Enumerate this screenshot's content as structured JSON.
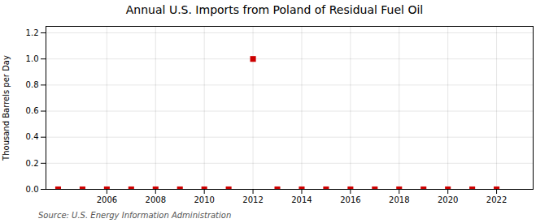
{
  "chart_data": {
    "type": "scatter",
    "title": "Annual U.S. Imports from Poland of Residual Fuel Oil",
    "ylabel": "Thousand Barrels per Day",
    "source": "Source: U.S. Energy Information Administration",
    "x": [
      2004,
      2005,
      2006,
      2007,
      2008,
      2009,
      2010,
      2011,
      2012,
      2013,
      2014,
      2015,
      2016,
      2017,
      2018,
      2019,
      2020,
      2021,
      2022
    ],
    "values": [
      0.0,
      0.0,
      0.0,
      0.0,
      0.0,
      0.0,
      0.0,
      0.0,
      1.0,
      0.0,
      0.0,
      0.0,
      0.0,
      0.0,
      0.0,
      0.0,
      0.0,
      0.0,
      0.0
    ],
    "color": "#cc0000",
    "marker": "square",
    "xlim": [
      2003.5,
      2023.5
    ],
    "xticks": [
      2006,
      2008,
      2010,
      2012,
      2014,
      2016,
      2018,
      2020,
      2022
    ],
    "ylim": [
      0.0,
      1.25
    ],
    "yticks": [
      {
        "value": 0.0,
        "label": "0.0"
      },
      0.2,
      0.4,
      0.6,
      0.8,
      {
        "value": 1.0,
        "label": "1.0"
      },
      1.2
    ],
    "grid": true
  }
}
